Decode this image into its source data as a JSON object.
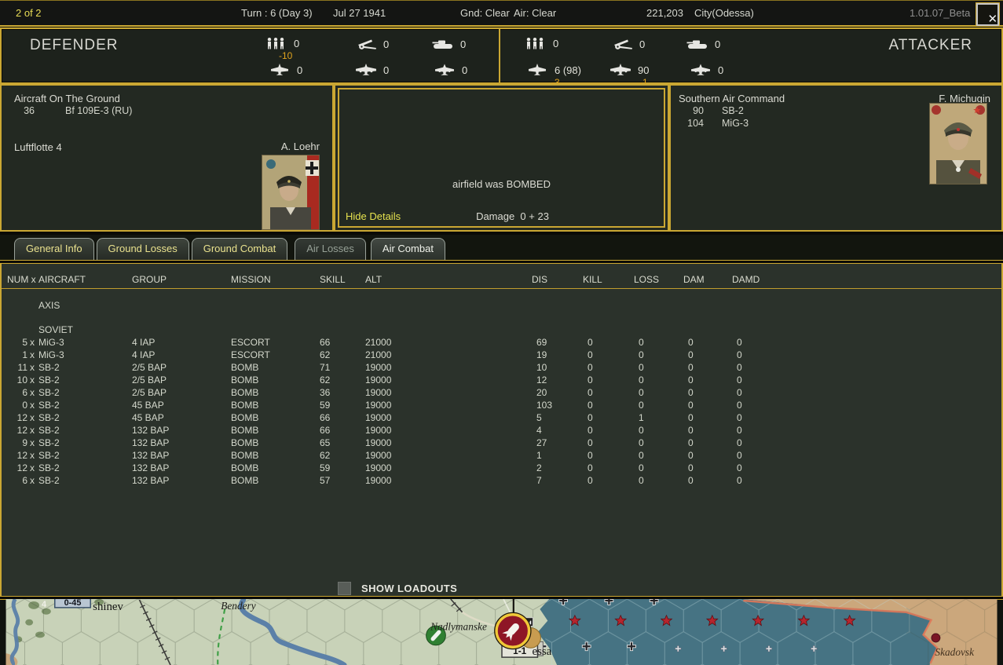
{
  "topbar": {
    "page": "2 of 2",
    "turn": "Turn : 6 (Day 3)",
    "date": "Jul 27 1941",
    "gnd": "Gnd: Clear",
    "air": "Air: Clear",
    "points": "221,203",
    "location": "City(Odessa)",
    "version": "1.01.07_Beta",
    "close": "✕"
  },
  "summary": {
    "defender_label": "DEFENDER",
    "attacker_label": "ATTACKER",
    "defender": {
      "men": "0",
      "men_delta": "-10",
      "guns": "0",
      "afv": "0",
      "fighters": "0",
      "bombers": "0",
      "util": "0"
    },
    "attacker": {
      "men": "0",
      "guns": "0",
      "afv": "0",
      "fighters": "6 (98)",
      "fighters_delta": "-3",
      "bombers": "90",
      "bombers_delta": "-1",
      "util": "0"
    }
  },
  "defender_panel": {
    "title": "Aircraft On The Ground",
    "aircraft": [
      {
        "num": "36",
        "name": "Bf 109E-3 (RU)"
      }
    ],
    "command": "Luftflotte 4",
    "leader": "A. Loehr"
  },
  "message_panel": {
    "message": "airfield was BOMBED",
    "hide_details": "Hide Details",
    "damage": "Damage  0 + 23"
  },
  "attacker_panel": {
    "command": "Southern Air Command",
    "aircraft": [
      {
        "num": "90",
        "name": "SB-2"
      },
      {
        "num": "104",
        "name": "MiG-3"
      }
    ],
    "leader": "F. Michugin"
  },
  "tabs": [
    {
      "label": "General Info",
      "state": "normal"
    },
    {
      "label": "Ground Losses",
      "state": "normal"
    },
    {
      "label": "Ground Combat",
      "state": "normal"
    },
    {
      "label": "Air Losses",
      "state": "disabled"
    },
    {
      "label": "Air Combat",
      "state": "active"
    }
  ],
  "air_table": {
    "headers": [
      "NUM x",
      "AIRCRAFT",
      "GROUP",
      "MISSION",
      "SKILL",
      "ALT",
      "DIS",
      "KILL",
      "LOSS",
      "DAM",
      "DAMD"
    ],
    "num_suffix": "x",
    "sections": [
      {
        "label": "AXIS",
        "rows": []
      },
      {
        "label": "SOVIET",
        "rows": [
          [
            "5",
            "MiG-3",
            "4 IAP",
            "ESCORT",
            "66",
            "21000",
            "69",
            "0",
            "0",
            "0",
            "0"
          ],
          [
            "1",
            "MiG-3",
            "4 IAP",
            "ESCORT",
            "62",
            "21000",
            "19",
            "0",
            "0",
            "0",
            "0"
          ],
          [
            "11",
            "SB-2",
            "2/5 BAP",
            "BOMB",
            "71",
            "19000",
            "10",
            "0",
            "0",
            "0",
            "0"
          ],
          [
            "10",
            "SB-2",
            "2/5 BAP",
            "BOMB",
            "62",
            "19000",
            "12",
            "0",
            "0",
            "0",
            "0"
          ],
          [
            "6",
            "SB-2",
            "2/5 BAP",
            "BOMB",
            "36",
            "19000",
            "20",
            "0",
            "0",
            "0",
            "0"
          ],
          [
            "0",
            "SB-2",
            "45 BAP",
            "BOMB",
            "59",
            "19000",
            "103",
            "0",
            "0",
            "0",
            "0"
          ],
          [
            "12",
            "SB-2",
            "45 BAP",
            "BOMB",
            "66",
            "19000",
            "5",
            "0",
            "1",
            "0",
            "0"
          ],
          [
            "12",
            "SB-2",
            "132 BAP",
            "BOMB",
            "66",
            "19000",
            "4",
            "0",
            "0",
            "0",
            "0"
          ],
          [
            "9",
            "SB-2",
            "132 BAP",
            "BOMB",
            "65",
            "19000",
            "27",
            "0",
            "0",
            "0",
            "0"
          ],
          [
            "12",
            "SB-2",
            "132 BAP",
            "BOMB",
            "62",
            "19000",
            "1",
            "0",
            "0",
            "0",
            "0"
          ],
          [
            "12",
            "SB-2",
            "132 BAP",
            "BOMB",
            "59",
            "19000",
            "2",
            "0",
            "0",
            "0",
            "0"
          ],
          [
            "6",
            "SB-2",
            "132 BAP",
            "BOMB",
            "57",
            "19000",
            "7",
            "0",
            "0",
            "0",
            "0"
          ]
        ]
      }
    ]
  },
  "loadouts": {
    "label": "SHOW LOADOUTS",
    "checked": false
  },
  "map": {
    "labels": {
      "kishinev": "shinev",
      "bendery": "Bendery",
      "nadlymanske": "Nadlymanske",
      "odessa": "essa",
      "skadovsk": "Skadovsk",
      "stack_digit": "4"
    },
    "counters": {
      "kishinev": "0-45",
      "odessa": "1-1"
    }
  }
}
